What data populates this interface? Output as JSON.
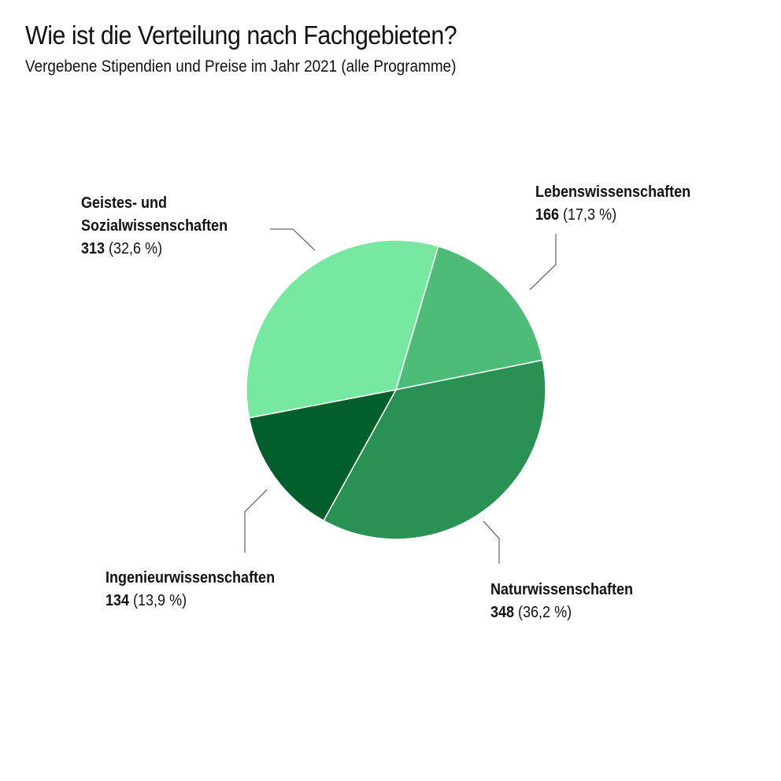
{
  "title": "Wie ist die Verteilung nach Fachgebieten?",
  "subtitle": "Vergebene Stipendien und Preise im Jahr 2021 (alle Programme)",
  "labels": {
    "lebens": {
      "name": "Lebenswissenschaften",
      "value": "166",
      "pct": "(17,3 %)"
    },
    "natur": {
      "name": "Naturwissenschaften",
      "value": "348",
      "pct": "(36,2 %)"
    },
    "ingenieur": {
      "name": "Ingenieurwissenschaften",
      "value": "134",
      "pct": "(13,9 %)"
    },
    "geistes": {
      "name_line1": "Geistes- und",
      "name_line2": "Sozialwissenschaften",
      "value": "313",
      "pct": "(32,6 %)"
    }
  },
  "chart_data": {
    "type": "pie",
    "title": "Wie ist die Verteilung nach Fachgebieten?",
    "subtitle": "Vergebene Stipendien und Preise im Jahr 2021 (alle Programme)",
    "categories": [
      "Lebenswissenschaften",
      "Naturwissenschaften",
      "Ingenieurwissenschaften",
      "Geistes- und Sozialwissenschaften"
    ],
    "values": [
      166,
      348,
      134,
      313
    ],
    "percentages": [
      17.3,
      36.2,
      13.9,
      32.6
    ],
    "colors": [
      "#4fbb79",
      "#2a9155",
      "#025e2b",
      "#77e8a0"
    ],
    "start_angle_deg": 16.4,
    "direction": "clockwise",
    "legend": "none (direct labels with leader lines)"
  }
}
